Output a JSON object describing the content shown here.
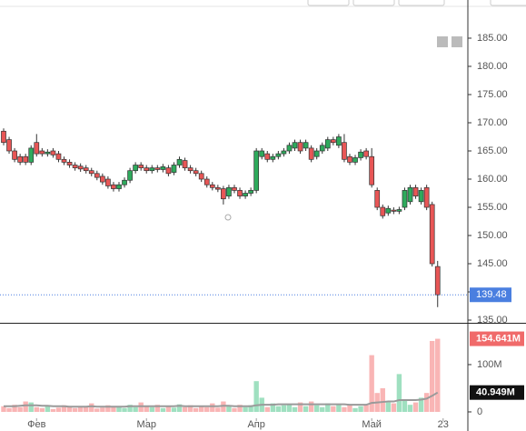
{
  "chart_data": [
    {
      "type": "candlestick",
      "open": [
        168.5,
        167,
        165,
        164,
        164,
        163,
        166.5,
        165,
        164.5,
        165,
        164.5,
        163.5,
        163,
        162.5,
        162.3,
        162,
        161.5,
        161,
        160.5,
        160,
        159,
        158.3,
        159,
        159.8,
        161.5,
        162.5,
        162,
        161.5,
        162,
        161.7,
        162,
        161.2,
        162.5,
        163.3,
        162,
        161.5,
        161,
        160,
        159,
        158.5,
        158.3,
        157,
        158.5,
        158,
        157,
        157.5,
        158,
        164,
        164.5,
        163.5,
        164,
        164.5,
        165,
        165.5,
        166.5,
        165.5,
        165.5,
        164,
        165,
        165.5,
        167,
        166,
        166.5,
        164,
        163,
        163.8,
        165,
        164,
        158,
        155,
        154,
        154.5,
        154.3,
        155,
        156,
        158.5,
        156,
        158.5,
        155.5,
        144.5
      ],
      "high": [
        169,
        167.5,
        165.5,
        164.5,
        164.5,
        166,
        168,
        165.5,
        165.3,
        165.5,
        165,
        164,
        163.5,
        163,
        162.8,
        162.5,
        162,
        161.5,
        161,
        160.5,
        159.5,
        159.5,
        160.3,
        162,
        163,
        163,
        162.5,
        162.5,
        162.5,
        162.7,
        162.5,
        163,
        164,
        163.8,
        162.5,
        162,
        161.5,
        160.5,
        159.5,
        159,
        158.8,
        159,
        159,
        158.5,
        158,
        158.5,
        165.5,
        165.5,
        165,
        164.5,
        165,
        165.5,
        166.5,
        167,
        167,
        167,
        166,
        165.5,
        166.5,
        167.5,
        167.5,
        168,
        168,
        164.5,
        164.3,
        165.3,
        165.5,
        165.5,
        158.5,
        155.5,
        155.3,
        155,
        155.1,
        158.5,
        159,
        159,
        158.5,
        159,
        156,
        145.5
      ],
      "low": [
        166,
        164.5,
        163,
        162.5,
        162.5,
        162.5,
        164,
        164,
        164,
        163.8,
        163,
        162.5,
        162,
        161.5,
        161.3,
        161,
        160.5,
        159.8,
        159,
        158.3,
        157.8,
        157.8,
        158.5,
        159.3,
        161,
        161.5,
        161,
        161,
        161.2,
        161.2,
        160.5,
        160.7,
        162,
        161.5,
        161,
        160.5,
        159.5,
        158.5,
        158,
        157.7,
        155.5,
        156.5,
        157.5,
        156.5,
        156.5,
        157,
        157.5,
        163.5,
        163,
        163,
        163.5,
        164,
        164.5,
        165,
        164.5,
        165,
        163,
        163.5,
        164.5,
        165,
        166,
        165.5,
        163,
        162.5,
        162.5,
        163.3,
        163.5,
        158.5,
        154.5,
        153,
        153.5,
        153.8,
        153.8,
        154.5,
        155.5,
        156.5,
        155.5,
        154.5,
        144.5,
        137.3
      ],
      "close": [
        166.5,
        165,
        163.5,
        163,
        163,
        165.5,
        164.5,
        164.5,
        164.8,
        164.3,
        163.5,
        163,
        162.5,
        162,
        161.8,
        161.5,
        161,
        160.3,
        159.5,
        158.8,
        158.3,
        159,
        159.8,
        161.5,
        162.5,
        162,
        161.5,
        162,
        161.7,
        162.2,
        161,
        162.5,
        163.5,
        162,
        161.5,
        161,
        160,
        159,
        158.5,
        158.2,
        156.5,
        158.5,
        158,
        157,
        157.5,
        158,
        165,
        165,
        163.5,
        164,
        164.5,
        165,
        166,
        166.5,
        165,
        166.5,
        163.5,
        165,
        166,
        167,
        166.5,
        167.5,
        163.5,
        163,
        163.8,
        164.8,
        164,
        159,
        155,
        153.5,
        154.8,
        154.3,
        154.6,
        158,
        158.5,
        157,
        158,
        155,
        145,
        139.48
      ],
      "up_color": "#2eaa5c",
      "down_color": "#e85656",
      "outline_color": "#333333",
      "last_price_color": "#4a7fe0",
      "xlim": [
        -0.66,
        84.5
      ],
      "ylim": [
        134.52,
        191.77
      ],
      "yticks": [
        {
          "value": 135,
          "label": "135.00"
        },
        {
          "value": 140,
          "label": "140.00"
        },
        {
          "value": 145,
          "label": "145.00"
        },
        {
          "value": 150,
          "label": "150.00"
        },
        {
          "value": 155,
          "label": "155.00"
        },
        {
          "value": 160,
          "label": "160.00"
        },
        {
          "value": 165,
          "label": "165.00"
        },
        {
          "value": 170,
          "label": "170.00"
        },
        {
          "value": 175,
          "label": "175.00"
        },
        {
          "value": 180,
          "label": "180.00"
        },
        {
          "value": 185,
          "label": "185.00"
        }
      ]
    },
    {
      "type": "bar",
      "values": [
        12,
        8,
        15,
        10,
        22,
        20,
        10,
        8,
        12,
        6,
        9,
        14,
        10,
        8,
        12,
        10,
        18,
        7,
        9,
        14,
        10,
        12,
        8,
        15,
        10,
        20,
        12,
        10,
        15,
        8,
        12,
        9,
        16,
        10,
        14,
        8,
        12,
        10,
        18,
        9,
        22,
        12,
        8,
        15,
        10,
        14,
        65,
        30,
        10,
        18,
        12,
        14,
        16,
        10,
        20,
        12,
        22,
        14,
        10,
        18,
        12,
        16,
        10,
        14,
        8,
        12,
        15,
        120,
        40,
        50,
        20,
        18,
        80,
        25,
        15,
        20,
        30,
        40,
        150,
        154.641
      ],
      "value_labels": [
        null,
        null,
        null,
        null,
        null,
        null,
        null,
        null,
        null,
        null,
        null,
        null,
        null,
        null,
        null,
        null,
        null,
        null,
        null,
        null,
        null,
        null,
        null,
        null,
        null,
        null,
        null,
        null,
        null,
        null,
        null,
        null,
        null,
        null,
        null,
        null,
        null,
        null,
        null,
        null,
        null,
        null,
        null,
        null,
        null,
        null,
        null,
        null,
        null,
        null,
        null,
        null,
        null,
        null,
        null,
        null,
        null,
        null,
        null,
        null,
        null,
        null,
        null,
        null,
        null,
        null,
        null,
        null,
        null,
        null,
        null,
        null,
        null,
        null,
        null,
        null,
        null,
        null,
        null,
        "154.641M"
      ],
      "up_color": "#9fe0c0",
      "down_color": "#f9b5b5",
      "value_label_color": "#f06a6a",
      "ma": {
        "values": [
          12,
          12,
          12,
          13,
          14,
          14,
          14,
          13,
          13,
          12,
          12,
          12,
          11,
          11,
          11,
          11,
          12,
          11,
          11,
          11,
          11,
          11,
          11,
          12,
          12,
          12,
          12,
          12,
          12,
          12,
          12,
          12,
          13,
          12,
          12,
          12,
          12,
          12,
          12,
          12,
          13,
          13,
          12,
          12,
          12,
          12,
          14,
          15,
          15,
          15,
          16,
          16,
          16,
          16,
          16,
          16,
          16,
          16,
          16,
          16,
          16,
          16,
          16,
          15,
          15,
          15,
          15,
          19,
          20,
          21,
          22,
          22,
          25,
          25,
          25,
          25,
          26,
          28,
          34,
          40.949
        ],
        "value_labels": [
          null,
          null,
          null,
          null,
          null,
          null,
          null,
          null,
          null,
          null,
          null,
          null,
          null,
          null,
          null,
          null,
          null,
          null,
          null,
          null,
          null,
          null,
          null,
          null,
          null,
          null,
          null,
          null,
          null,
          null,
          null,
          null,
          null,
          null,
          null,
          null,
          null,
          null,
          null,
          null,
          null,
          null,
          null,
          null,
          null,
          null,
          null,
          null,
          null,
          null,
          null,
          null,
          null,
          null,
          null,
          null,
          null,
          null,
          null,
          null,
          null,
          null,
          null,
          null,
          null,
          null,
          null,
          null,
          null,
          null,
          null,
          null,
          null,
          null,
          null,
          null,
          null,
          null,
          null,
          "40.949M"
        ],
        "color": "#9a9a9a",
        "label_color": "#111111"
      },
      "xlim": [
        -0.66,
        84.5
      ],
      "ylim": [
        -13.5,
        186.5
      ],
      "yticks": [
        0,
        {
          "value": 100,
          "label": "100M"
        }
      ],
      "xticks": [
        {
          "value": 6,
          "label": "Фев"
        },
        {
          "value": 26,
          "label": "Мар"
        },
        {
          "value": 46,
          "label": "Апр"
        },
        {
          "value": 67,
          "label": "Май"
        },
        {
          "value": 80,
          "label": "23"
        }
      ]
    }
  ]
}
